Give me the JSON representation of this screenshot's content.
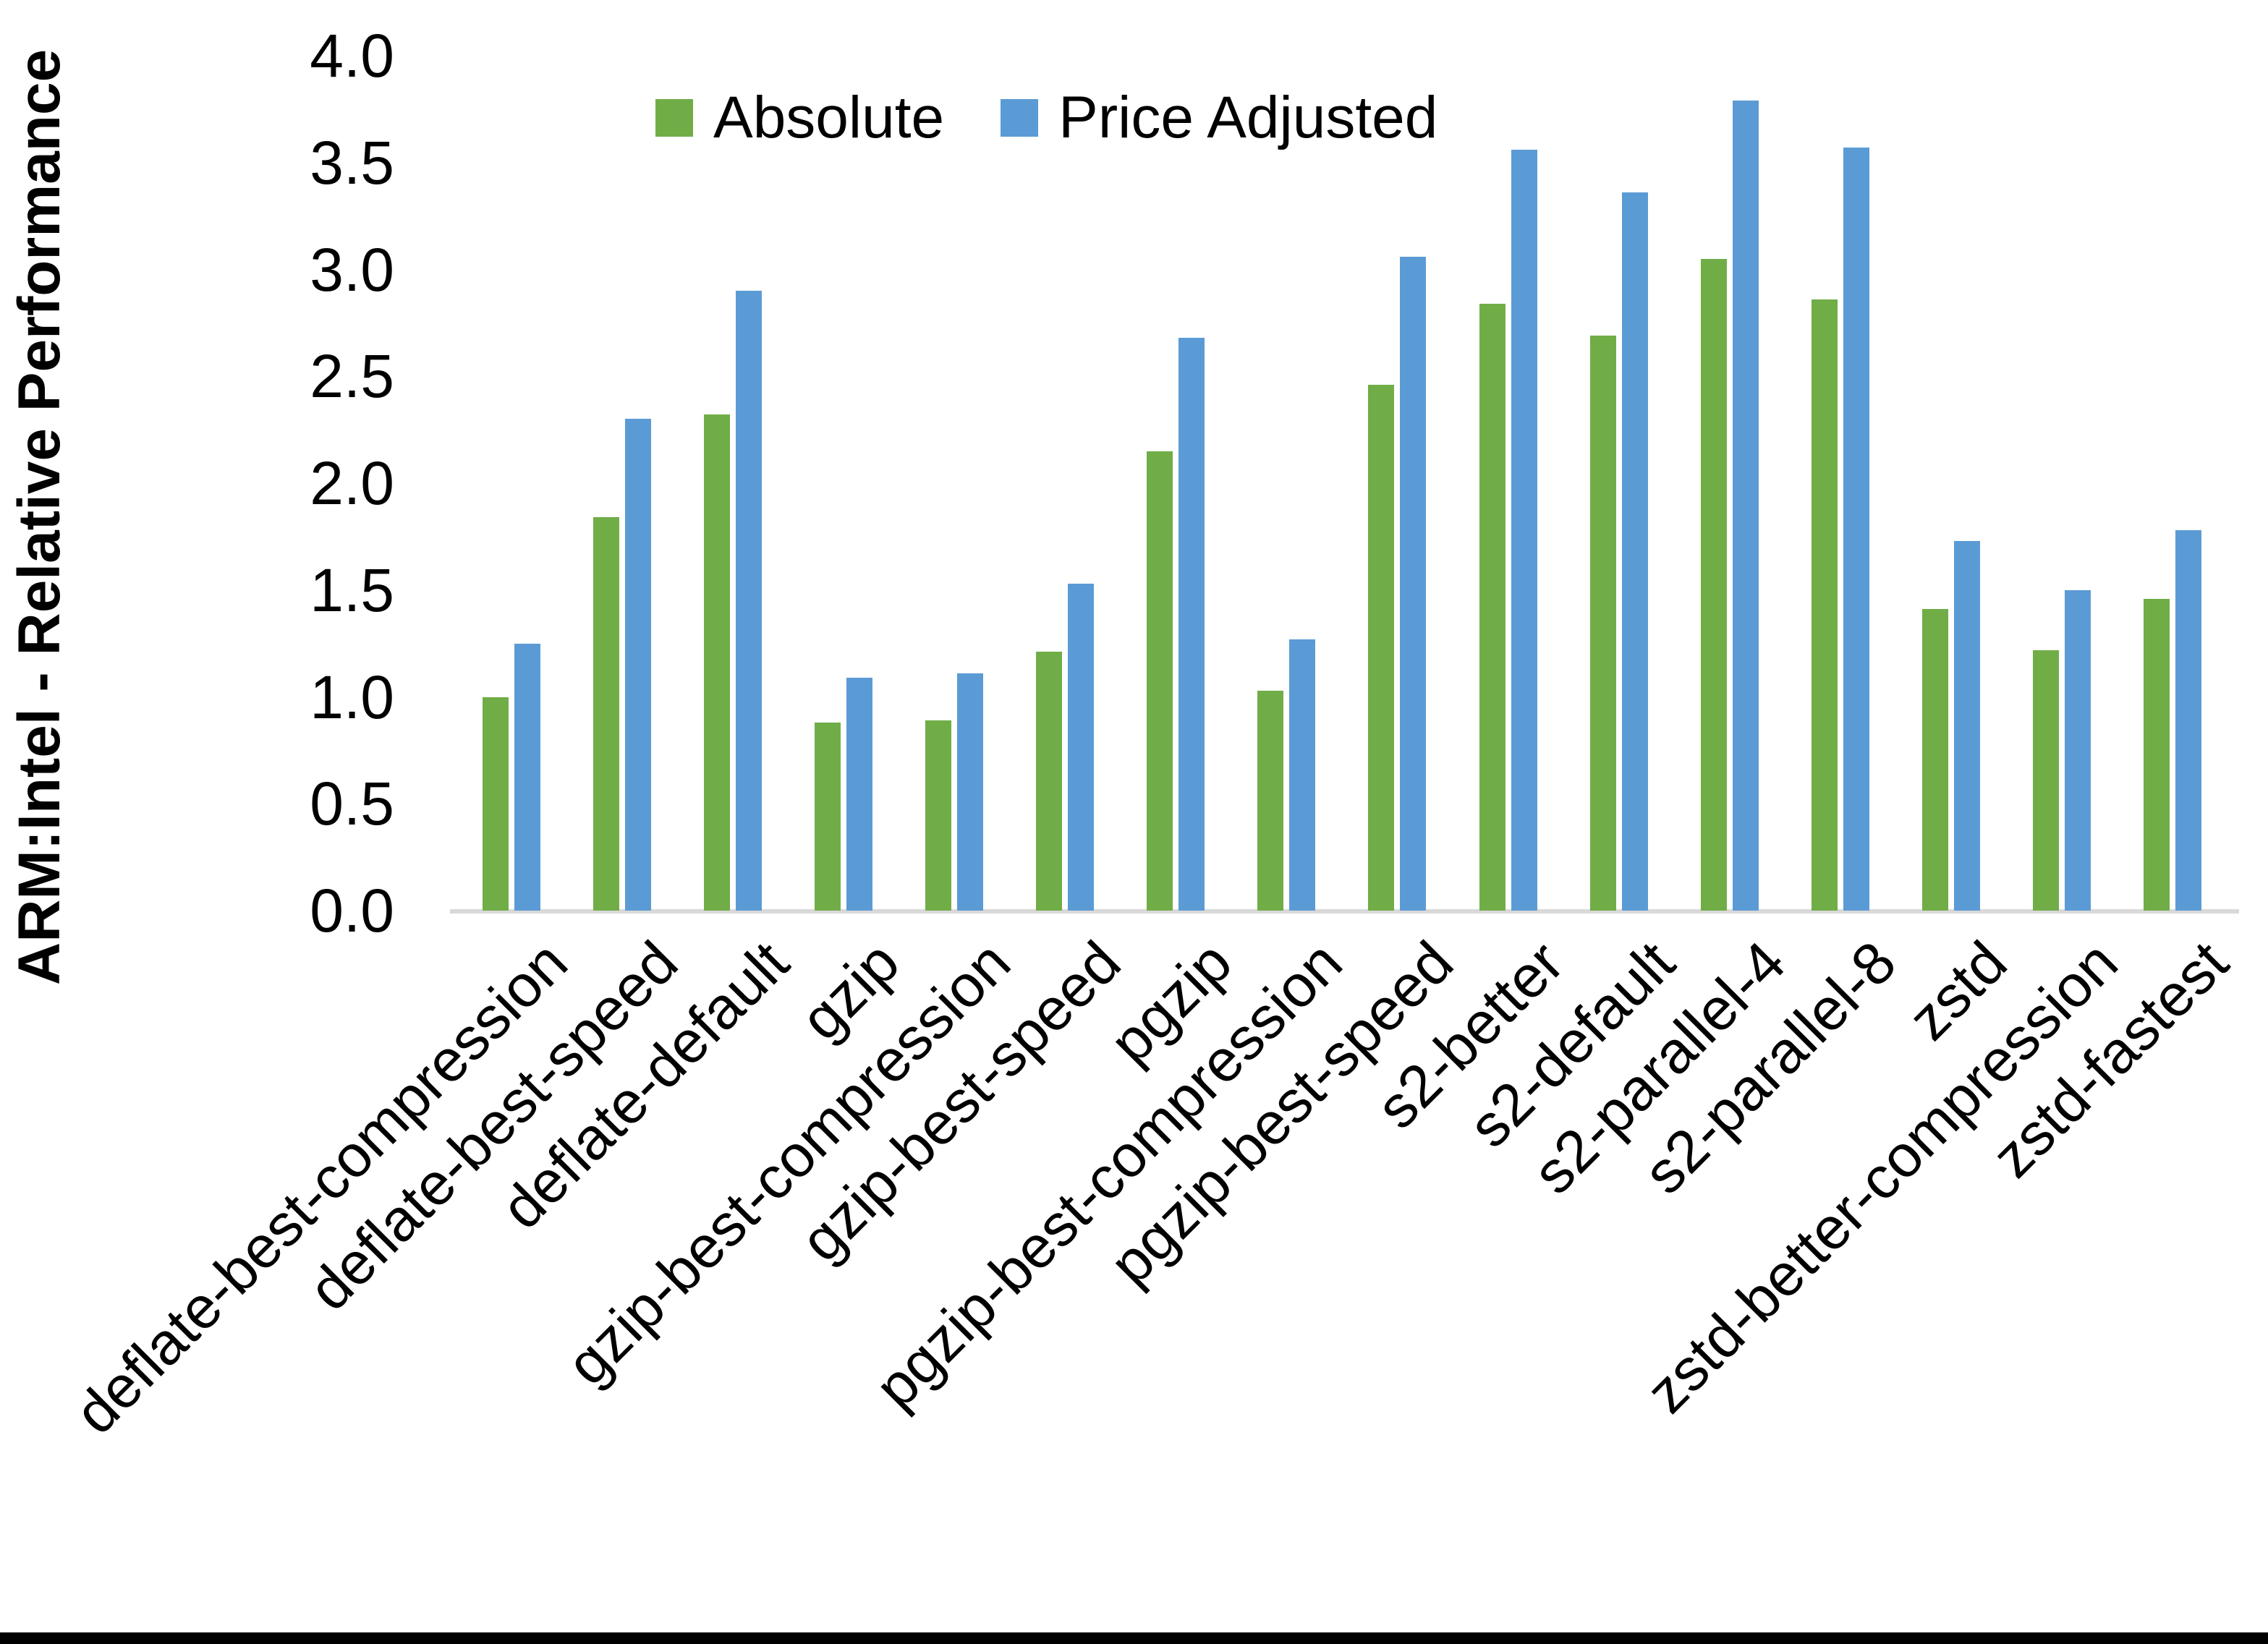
{
  "chart_data": {
    "type": "bar",
    "title": "",
    "xlabel": "",
    "ylabel": "ARM:Intel - Relative Performance",
    "ylim": [
      0.0,
      4.0
    ],
    "ytick_step": 0.5,
    "yticks": [
      "0.0",
      "0.5",
      "1.0",
      "1.5",
      "2.0",
      "2.5",
      "3.0",
      "3.5",
      "4.0"
    ],
    "grid": false,
    "legend_position": "top-center",
    "axis_line_color": "#d9d9d9",
    "categories": [
      "deflate-best-compression",
      "deflate-best-speed",
      "deflate-default",
      "gzip",
      "gzip-best-compression",
      "gzip-best-speed",
      "pgzip",
      "pgzip-best-compression",
      "pgzip-best-speed",
      "s2-better",
      "s2-default",
      "s2-parallel-4",
      "s2-parallel-8",
      "zstd",
      "zstd-better-compression",
      "zstd-fastest"
    ],
    "series": [
      {
        "name": "Absolute",
        "color": "#70AD47",
        "values": [
          1.0,
          1.84,
          2.32,
          0.88,
          0.89,
          1.21,
          2.15,
          1.03,
          2.46,
          2.84,
          2.69,
          3.05,
          2.86,
          1.41,
          1.22,
          1.46
        ]
      },
      {
        "name": "Price Adjusted",
        "color": "#5B9BD5",
        "values": [
          1.25,
          2.3,
          2.9,
          1.09,
          1.11,
          1.53,
          2.68,
          1.27,
          3.06,
          3.56,
          3.36,
          3.79,
          3.57,
          1.73,
          1.5,
          1.78
        ]
      }
    ]
  },
  "decorations": {
    "bottom_strip_color": "#000000"
  }
}
